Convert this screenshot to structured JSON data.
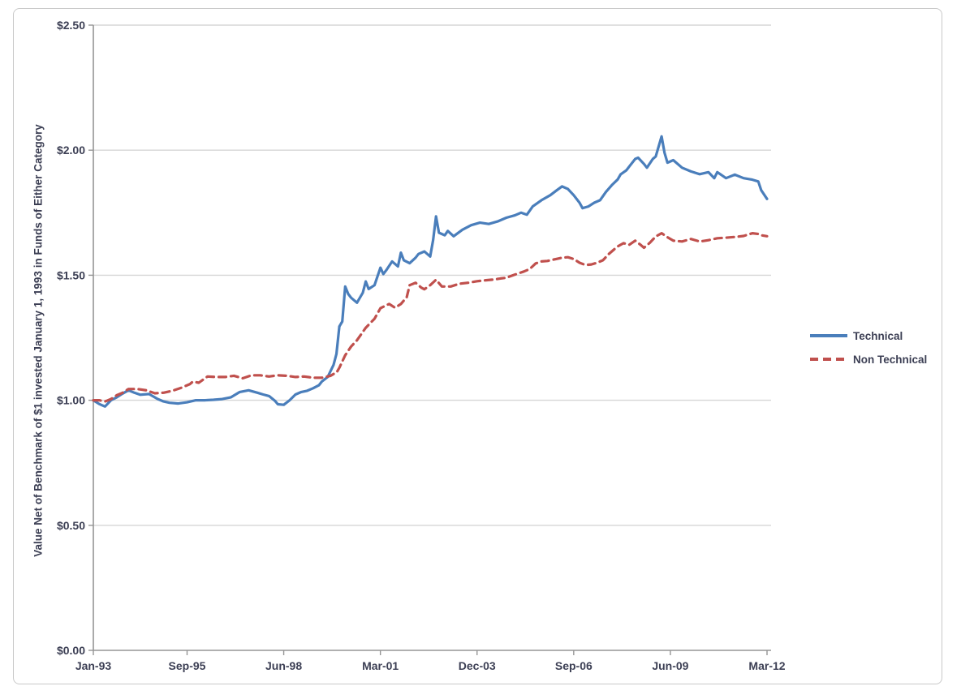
{
  "colors": {
    "technical_line": "#4a7ebb",
    "non_technical_line": "#c0504d",
    "gridline": "#d6d6d6",
    "axis_line": "#959595",
    "label_text": "#3c3f54",
    "frame_border": "#c9c9c9",
    "background": "#ffffff"
  },
  "chart_data": {
    "type": "line",
    "title": "",
    "xlabel": "",
    "ylabel": "Value Net of Benchmark of $1 invested January 1, 1993 in Funds of Either Category",
    "grid": "horizontal",
    "legend_position": "right-outside",
    "ylim": [
      0,
      2.5
    ],
    "x_range_months": [
      0,
      230
    ],
    "x_start_label": "Jan-93",
    "x_end_label": "Mar-12",
    "y_ticks": [
      {
        "value": 0.0,
        "label": "$0.00"
      },
      {
        "value": 0.5,
        "label": "$0.50"
      },
      {
        "value": 1.0,
        "label": "$1.00"
      },
      {
        "value": 1.5,
        "label": "$1.50"
      },
      {
        "value": 2.0,
        "label": "$2.00"
      },
      {
        "value": 2.5,
        "label": "$2.50"
      }
    ],
    "x_ticks": [
      {
        "month": 0,
        "label": "Jan-93"
      },
      {
        "month": 32,
        "label": "Sep-95"
      },
      {
        "month": 65,
        "label": "Jun-98"
      },
      {
        "month": 98,
        "label": "Mar-01"
      },
      {
        "month": 131,
        "label": "Dec-03"
      },
      {
        "month": 164,
        "label": "Sep-06"
      },
      {
        "month": 197,
        "label": "Jun-09"
      },
      {
        "month": 230,
        "label": "Mar-12"
      }
    ],
    "series": [
      {
        "name": "Technical",
        "color": "#4a7ebb",
        "line_style": "solid",
        "points": [
          [
            0,
            1.0
          ],
          [
            2,
            0.985
          ],
          [
            4,
            0.975
          ],
          [
            6,
            1.0
          ],
          [
            8,
            1.012
          ],
          [
            10,
            1.027
          ],
          [
            12,
            1.04
          ],
          [
            14,
            1.03
          ],
          [
            16,
            1.022
          ],
          [
            19,
            1.025
          ],
          [
            22,
            1.005
          ],
          [
            24,
            0.995
          ],
          [
            26,
            0.99
          ],
          [
            29,
            0.987
          ],
          [
            32,
            0.992
          ],
          [
            35,
            1.0
          ],
          [
            38,
            1.0
          ],
          [
            41,
            1.002
          ],
          [
            44,
            1.005
          ],
          [
            47,
            1.012
          ],
          [
            50,
            1.033
          ],
          [
            53,
            1.04
          ],
          [
            56,
            1.03
          ],
          [
            58,
            1.023
          ],
          [
            60,
            1.017
          ],
          [
            62,
            0.998
          ],
          [
            63,
            0.984
          ],
          [
            65,
            0.982
          ],
          [
            67,
            1.0
          ],
          [
            69,
            1.023
          ],
          [
            71,
            1.033
          ],
          [
            73,
            1.038
          ],
          [
            75,
            1.048
          ],
          [
            77,
            1.06
          ],
          [
            78,
            1.075
          ],
          [
            80,
            1.093
          ],
          [
            82,
            1.141
          ],
          [
            83,
            1.185
          ],
          [
            84,
            1.295
          ],
          [
            85,
            1.315
          ],
          [
            86,
            1.455
          ],
          [
            87,
            1.425
          ],
          [
            88,
            1.41
          ],
          [
            90,
            1.39
          ],
          [
            92,
            1.43
          ],
          [
            93,
            1.475
          ],
          [
            94,
            1.445
          ],
          [
            96,
            1.46
          ],
          [
            98,
            1.53
          ],
          [
            99,
            1.505
          ],
          [
            100,
            1.52
          ],
          [
            102,
            1.555
          ],
          [
            104,
            1.535
          ],
          [
            105,
            1.59
          ],
          [
            106,
            1.56
          ],
          [
            108,
            1.548
          ],
          [
            110,
            1.57
          ],
          [
            111,
            1.585
          ],
          [
            113,
            1.595
          ],
          [
            115,
            1.575
          ],
          [
            116,
            1.64
          ],
          [
            117,
            1.735
          ],
          [
            118,
            1.67
          ],
          [
            120,
            1.66
          ],
          [
            121,
            1.677
          ],
          [
            123,
            1.656
          ],
          [
            126,
            1.682
          ],
          [
            129,
            1.7
          ],
          [
            132,
            1.71
          ],
          [
            135,
            1.705
          ],
          [
            138,
            1.715
          ],
          [
            141,
            1.73
          ],
          [
            144,
            1.74
          ],
          [
            146,
            1.75
          ],
          [
            148,
            1.742
          ],
          [
            150,
            1.775
          ],
          [
            153,
            1.8
          ],
          [
            156,
            1.82
          ],
          [
            158,
            1.838
          ],
          [
            160,
            1.855
          ],
          [
            162,
            1.845
          ],
          [
            164,
            1.82
          ],
          [
            166,
            1.79
          ],
          [
            167,
            1.768
          ],
          [
            169,
            1.775
          ],
          [
            171,
            1.79
          ],
          [
            173,
            1.8
          ],
          [
            175,
            1.833
          ],
          [
            177,
            1.86
          ],
          [
            179,
            1.883
          ],
          [
            180,
            1.903
          ],
          [
            182,
            1.92
          ],
          [
            183,
            1.935
          ],
          [
            185,
            1.965
          ],
          [
            186,
            1.97
          ],
          [
            188,
            1.945
          ],
          [
            189,
            1.93
          ],
          [
            191,
            1.965
          ],
          [
            192,
            1.975
          ],
          [
            194,
            2.055
          ],
          [
            195,
            1.99
          ],
          [
            196,
            1.95
          ],
          [
            198,
            1.96
          ],
          [
            201,
            1.93
          ],
          [
            204,
            1.915
          ],
          [
            207,
            1.904
          ],
          [
            210,
            1.912
          ],
          [
            212,
            1.888
          ],
          [
            213,
            1.912
          ],
          [
            216,
            1.888
          ],
          [
            219,
            1.902
          ],
          [
            222,
            1.888
          ],
          [
            225,
            1.882
          ],
          [
            227,
            1.875
          ],
          [
            228,
            1.84
          ],
          [
            230,
            1.805
          ]
        ]
      },
      {
        "name": "Non Technical",
        "color": "#c0504d",
        "line_style": "dashed",
        "points": [
          [
            0,
            1.0
          ],
          [
            2,
            1.0
          ],
          [
            4,
            0.995
          ],
          [
            6,
            1.005
          ],
          [
            8,
            1.02
          ],
          [
            10,
            1.03
          ],
          [
            12,
            1.045
          ],
          [
            15,
            1.045
          ],
          [
            18,
            1.04
          ],
          [
            21,
            1.028
          ],
          [
            24,
            1.03
          ],
          [
            27,
            1.038
          ],
          [
            30,
            1.05
          ],
          [
            33,
            1.065
          ],
          [
            34,
            1.075
          ],
          [
            36,
            1.07
          ],
          [
            39,
            1.095
          ],
          [
            42,
            1.093
          ],
          [
            45,
            1.093
          ],
          [
            48,
            1.098
          ],
          [
            51,
            1.088
          ],
          [
            54,
            1.1
          ],
          [
            57,
            1.1
          ],
          [
            60,
            1.095
          ],
          [
            63,
            1.1
          ],
          [
            66,
            1.098
          ],
          [
            69,
            1.093
          ],
          [
            72,
            1.095
          ],
          [
            75,
            1.09
          ],
          [
            78,
            1.09
          ],
          [
            81,
            1.098
          ],
          [
            82,
            1.105
          ],
          [
            83,
            1.11
          ],
          [
            84,
            1.13
          ],
          [
            85,
            1.155
          ],
          [
            86,
            1.18
          ],
          [
            88,
            1.215
          ],
          [
            90,
            1.24
          ],
          [
            93,
            1.29
          ],
          [
            96,
            1.326
          ],
          [
            98,
            1.368
          ],
          [
            100,
            1.38
          ],
          [
            101,
            1.385
          ],
          [
            103,
            1.37
          ],
          [
            105,
            1.385
          ],
          [
            107,
            1.412
          ],
          [
            108,
            1.46
          ],
          [
            110,
            1.47
          ],
          [
            112,
            1.45
          ],
          [
            113,
            1.444
          ],
          [
            115,
            1.46
          ],
          [
            117,
            1.482
          ],
          [
            119,
            1.455
          ],
          [
            122,
            1.455
          ],
          [
            125,
            1.466
          ],
          [
            128,
            1.47
          ],
          [
            131,
            1.476
          ],
          [
            134,
            1.48
          ],
          [
            137,
            1.483
          ],
          [
            139,
            1.487
          ],
          [
            141,
            1.49
          ],
          [
            144,
            1.503
          ],
          [
            147,
            1.515
          ],
          [
            149,
            1.525
          ],
          [
            151,
            1.547
          ],
          [
            153,
            1.555
          ],
          [
            155,
            1.557
          ],
          [
            158,
            1.565
          ],
          [
            160,
            1.57
          ],
          [
            162,
            1.572
          ],
          [
            164,
            1.565
          ],
          [
            166,
            1.55
          ],
          [
            168,
            1.541
          ],
          [
            170,
            1.543
          ],
          [
            172,
            1.55
          ],
          [
            174,
            1.56
          ],
          [
            176,
            1.585
          ],
          [
            178,
            1.605
          ],
          [
            179,
            1.615
          ],
          [
            181,
            1.628
          ],
          [
            183,
            1.622
          ],
          [
            185,
            1.638
          ],
          [
            187,
            1.62
          ],
          [
            188,
            1.61
          ],
          [
            190,
            1.63
          ],
          [
            192,
            1.655
          ],
          [
            194,
            1.668
          ],
          [
            196,
            1.652
          ],
          [
            198,
            1.638
          ],
          [
            201,
            1.635
          ],
          [
            204,
            1.645
          ],
          [
            207,
            1.635
          ],
          [
            210,
            1.64
          ],
          [
            213,
            1.648
          ],
          [
            216,
            1.65
          ],
          [
            219,
            1.653
          ],
          [
            222,
            1.657
          ],
          [
            225,
            1.668
          ],
          [
            227,
            1.665
          ],
          [
            228,
            1.66
          ],
          [
            230,
            1.656
          ]
        ]
      }
    ]
  }
}
